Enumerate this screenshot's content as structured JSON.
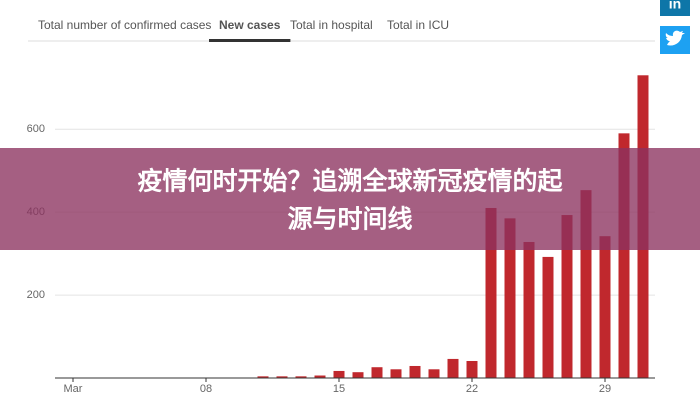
{
  "tabs": [
    "Total number of confirmed cases",
    "New cases",
    "Total in hospital",
    "Total in ICU"
  ],
  "social": {
    "linkedin": "in"
  },
  "banner": [
    "疫情何时开始？追溯全球新冠疫情的起",
    "源与时间线"
  ],
  "chart_data": {
    "type": "bar",
    "categories": [
      "Mar",
      null,
      null,
      null,
      null,
      null,
      null,
      "08",
      null,
      null,
      null,
      null,
      null,
      null,
      "15",
      null,
      null,
      null,
      null,
      null,
      null,
      "22",
      null,
      null,
      null,
      null,
      null,
      null,
      "29",
      null,
      null
    ],
    "values": [
      0,
      0,
      0,
      0,
      0,
      0,
      0,
      0,
      0,
      0,
      4,
      4,
      4,
      6,
      17,
      14,
      26,
      21,
      29,
      21,
      46,
      41,
      410,
      385,
      328,
      292,
      393,
      453,
      342,
      590,
      730
    ],
    "color": "#c0282d",
    "ylim": [
      0,
      750
    ],
    "yticks": [
      200,
      400,
      600
    ],
    "grid": true
  }
}
